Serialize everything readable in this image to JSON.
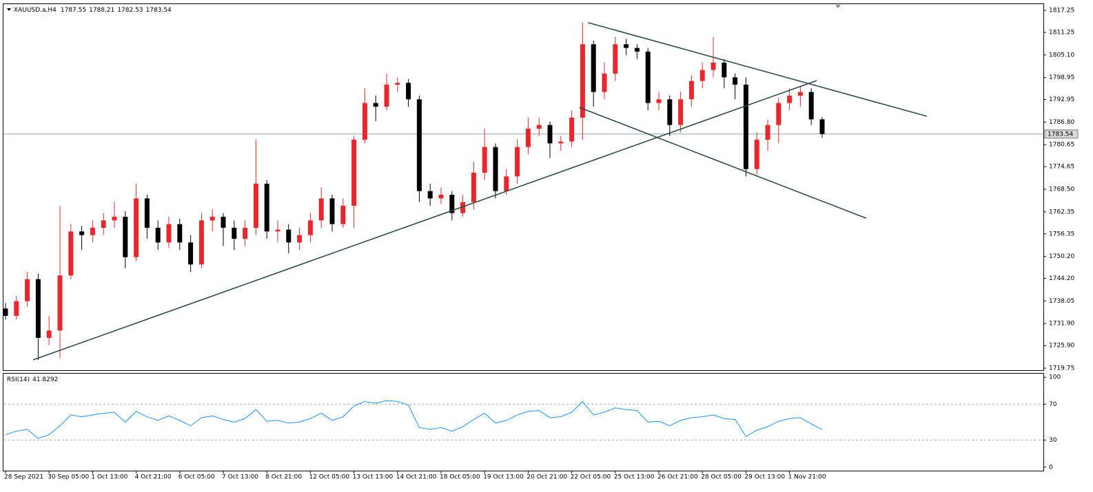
{
  "chart_data": {
    "type": "candlestick",
    "title": "XAUUSD.a,H4",
    "categories": [
      "28 Sep 2021",
      null,
      null,
      null,
      "30 Sep 05:00",
      null,
      null,
      null,
      "1 Oct 13:00",
      null,
      null,
      null,
      "4 Oct 21:00",
      null,
      null,
      null,
      "6 Oct 05:00",
      null,
      null,
      null,
      "7 Oct 13:00",
      null,
      null,
      null,
      "8 Oct 21:00",
      null,
      null,
      null,
      "12 Oct 05:00",
      null,
      null,
      null,
      "13 Oct 13:00",
      null,
      null,
      null,
      "14 Oct 21:00",
      null,
      null,
      null,
      "18 Oct 05:00",
      null,
      null,
      null,
      "19 Oct 13:00",
      null,
      null,
      null,
      "20 Oct 21:00",
      null,
      null,
      null,
      "22 Oct 05:00",
      null,
      null,
      null,
      "25 Oct 13:00",
      null,
      null,
      null,
      "26 Oct 21:00",
      null,
      null,
      null,
      "28 Oct 05:00",
      null,
      null,
      null,
      "29 Oct 13:00",
      null,
      null,
      null,
      "1 Nov 21:00",
      null,
      null,
      null
    ],
    "open": [
      1736,
      1734,
      1738,
      1744,
      1728,
      1730,
      1745,
      1757,
      1756,
      1758,
      1760,
      1761,
      1750,
      1766,
      1758,
      1754,
      1759,
      1754,
      1748,
      1760,
      1761,
      1758,
      1755,
      1758,
      1770,
      1757,
      1757.5,
      1754,
      1756,
      1760,
      1766,
      1759,
      1764,
      1782,
      1792,
      1791,
      1797,
      1797.5,
      1793,
      1768,
      1766,
      1767,
      1762,
      1765,
      1773,
      1780,
      1768,
      1772,
      1780,
      1785,
      1786,
      1781,
      1781.5,
      1788,
      1808,
      1795,
      1800,
      1808,
      1807,
      1806,
      1792,
      1793,
      1786,
      1793,
      1798,
      1801,
      1803,
      1799,
      1797,
      1774,
      1782,
      1786,
      1792,
      1794,
      1795,
      1787.55
    ],
    "high": [
      1737.5,
      1739.5,
      1746,
      1745.5,
      1734,
      1764,
      1759,
      1758.5,
      1760,
      1762,
      1765,
      1762.5,
      1770,
      1767,
      1760,
      1761,
      1760.5,
      1756,
      1762,
      1763,
      1762,
      1760,
      1760,
      1782,
      1771,
      1760,
      1759,
      1758,
      1762,
      1769,
      1767,
      1766,
      1783,
      1796,
      1794,
      1800,
      1799,
      1798.5,
      1794,
      1770,
      1769,
      1768,
      1767,
      1776,
      1785,
      1781,
      1774,
      1782,
      1788,
      1788,
      1787,
      1783,
      1790,
      1814,
      1809,
      1803,
      1810,
      1809.5,
      1808,
      1807,
      1795,
      1794,
      1795,
      1799.5,
      1803,
      1810,
      1804,
      1800,
      1799,
      1784,
      1787.5,
      1793.5,
      1796,
      1796.5,
      1796,
      1788.21
    ],
    "low": [
      1733,
      1733,
      1736.5,
      1722,
      1726,
      1722.5,
      1744,
      1752,
      1754,
      1756,
      1758,
      1747,
      1749,
      1755,
      1752,
      1752.5,
      1752,
      1746,
      1747,
      1757,
      1753,
      1752,
      1753,
      1756,
      1755,
      1754,
      1751,
      1752,
      1754,
      1758,
      1757,
      1758,
      1758,
      1781,
      1787,
      1790,
      1795,
      1791,
      1765,
      1764,
      1764.5,
      1760,
      1761,
      1763,
      1771,
      1766,
      1767,
      1770,
      1778,
      1783,
      1777,
      1779,
      1780,
      1782,
      1791,
      1793,
      1798,
      1805,
      1804,
      1790,
      1790,
      1783,
      1784,
      1791,
      1796,
      1799,
      1796,
      1793,
      1772,
      1772.5,
      1779,
      1781,
      1790,
      1791,
      1786,
      1782.53
    ],
    "close": [
      1734,
      1738,
      1744,
      1728,
      1730,
      1745,
      1757,
      1756,
      1758,
      1760,
      1761,
      1750,
      1766,
      1758,
      1754,
      1759,
      1754,
      1748,
      1760,
      1761,
      1758,
      1755,
      1758,
      1770,
      1757,
      1757.5,
      1754,
      1756,
      1760,
      1766,
      1759,
      1764,
      1782,
      1792,
      1791,
      1797,
      1797.5,
      1793,
      1768,
      1766,
      1767,
      1762,
      1765,
      1773,
      1780,
      1768,
      1772,
      1780,
      1785,
      1786,
      1781,
      1781.5,
      1788,
      1808,
      1795,
      1800,
      1808,
      1807,
      1806,
      1792,
      1793,
      1786,
      1793,
      1798,
      1801,
      1803,
      1799,
      1797,
      1774,
      1782,
      1786,
      1792,
      1794,
      1795,
      1787.55,
      1783.54
    ],
    "up_color": "#e8262b",
    "down_color": "#000000",
    "ylim": [
      1719.19,
      1818.94
    ],
    "yticks": [
      1817.25,
      1811.25,
      {
        "value": 1805.1,
        "label": "1805.10"
      },
      1798.95,
      1792.95,
      {
        "value": 1786.8,
        "label": "1786.80"
      },
      1780.65,
      1774.65,
      {
        "value": 1768.5,
        "label": "1768.50"
      },
      1762.35,
      1756.35,
      {
        "value": 1750.2,
        "label": "1750.20"
      },
      {
        "value": 1744.2,
        "label": "1744.20"
      },
      1738.05,
      {
        "value": 1731.9,
        "label": "1731.90"
      },
      {
        "value": 1725.9,
        "label": "1725.90"
      },
      1719.75
    ],
    "price_line_color": "#8aa4b4",
    "trendlines": [
      {
        "x": [
          2.53,
          74.5
        ],
        "y": [
          1722.0,
          1798.1
        ]
      },
      {
        "x": [
          53.5,
          84.6
        ],
        "y": [
          1813.9,
          1788.4
        ]
      },
      {
        "x": [
          52.7,
          79.05
        ],
        "y": [
          1790.8,
          1760.6
        ]
      }
    ],
    "trendline_color": "#2f4a4a",
    "rsi": {
      "name": "RSI(14)",
      "color": "#1e90ff",
      "values": [
        36,
        40,
        42,
        32,
        36,
        46,
        58,
        56,
        58,
        60,
        61,
        50,
        62,
        56,
        52,
        57,
        52,
        46,
        55,
        57,
        53,
        50,
        54,
        64,
        51,
        52,
        49,
        50,
        54,
        60,
        52,
        56,
        68,
        73,
        71,
        74,
        73,
        69,
        44,
        42,
        44,
        40,
        45,
        53,
        60,
        49,
        52,
        58,
        62,
        63,
        55,
        56,
        61,
        73,
        58,
        61,
        66,
        64,
        63,
        50,
        51,
        46,
        52,
        55,
        56,
        58,
        54,
        53,
        34,
        41,
        45,
        51,
        54,
        55,
        48,
        41.8292
      ],
      "ylim": [
        -4,
        104
      ],
      "yticks": [
        100,
        70,
        30,
        0
      ],
      "levels": [
        70,
        30
      ]
    }
  }
}
